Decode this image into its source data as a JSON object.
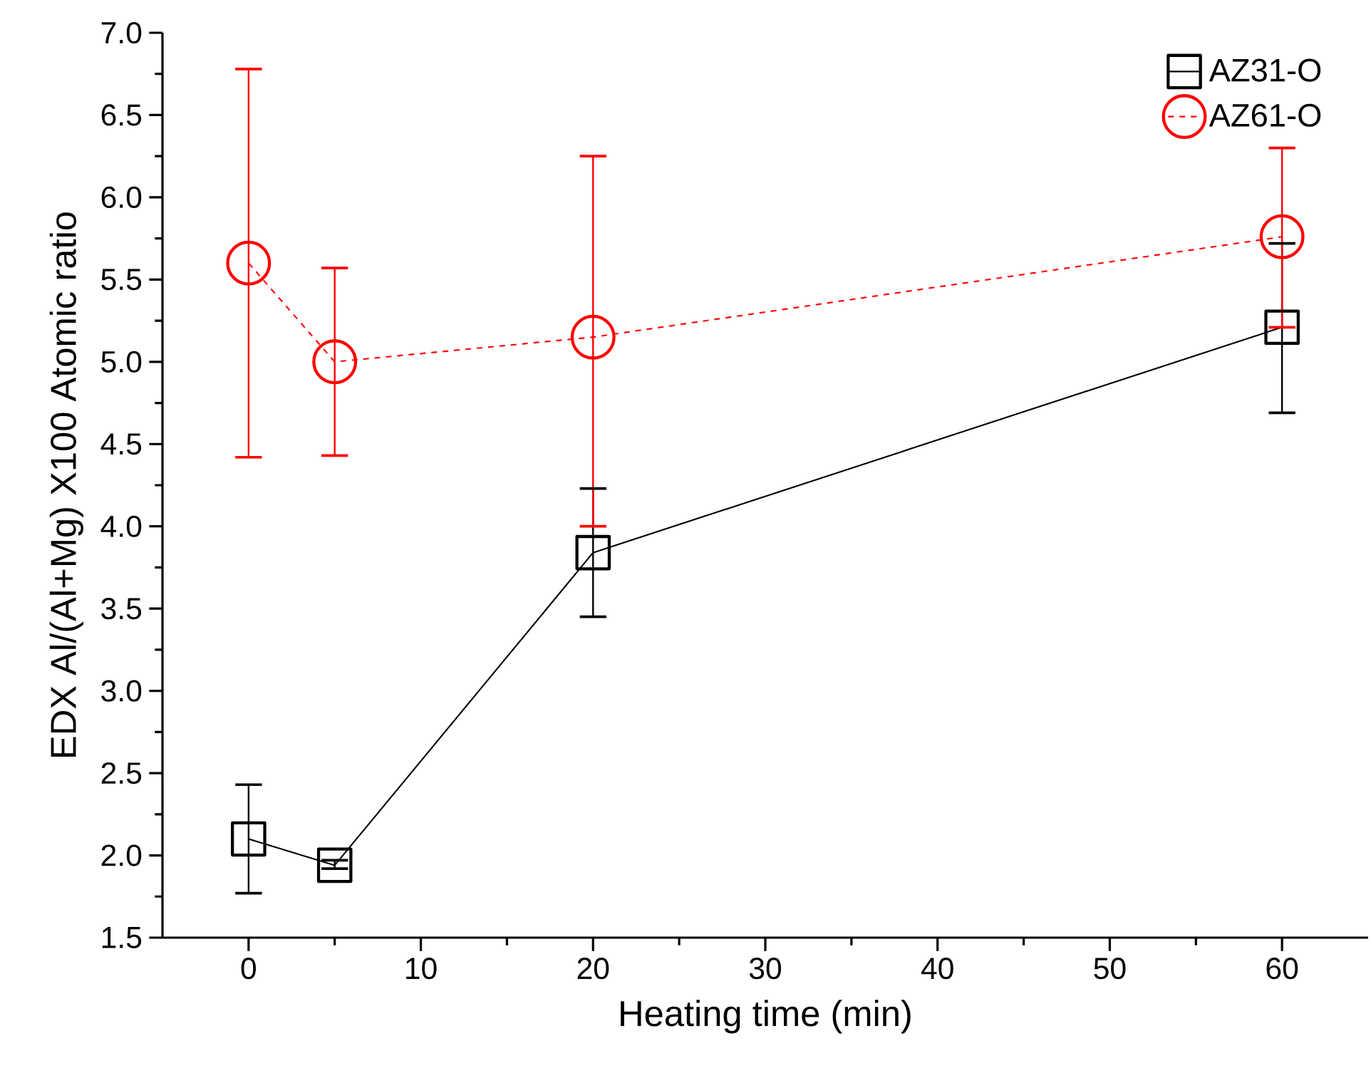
{
  "chart_data": {
    "type": "line",
    "xlabel": "Heating time (min)",
    "ylabel": "EDX Al/(Al+Mg) X100 Atomic ratio",
    "x": [
      0,
      5,
      20,
      60
    ],
    "series": [
      {
        "name": "AZ31-O",
        "color": "#000000",
        "marker": "square",
        "line_style": "solid",
        "values": [
          2.1,
          1.94,
          3.84,
          5.21
        ],
        "errors": [
          [
            1.77,
            2.43
          ],
          [
            1.92,
            1.97
          ],
          [
            3.45,
            4.23
          ],
          [
            4.69,
            5.72
          ]
        ]
      },
      {
        "name": "AZ61-O",
        "color": "#ff0000",
        "marker": "circle",
        "line_style": "dashed",
        "values": [
          5.6,
          5.0,
          5.15,
          5.76
        ],
        "errors": [
          [
            4.42,
            6.78
          ],
          [
            4.43,
            5.57
          ],
          [
            4.0,
            6.25
          ],
          [
            5.21,
            6.3
          ]
        ]
      }
    ],
    "xlim": [
      -5,
      65
    ],
    "xticks": [
      0,
      10,
      20,
      30,
      40,
      50,
      60
    ],
    "ylim": [
      1.5,
      7.0
    ],
    "yticks": [
      1.5,
      {
        "value": 2,
        "label": "2.0"
      },
      2.5,
      {
        "value": 3,
        "label": "3.0"
      },
      3.5,
      {
        "value": 4,
        "label": "4.0"
      },
      4.5,
      {
        "value": 5,
        "label": "5.0"
      },
      5.5,
      {
        "value": 6,
        "label": "6.0"
      },
      6.5,
      {
        "value": 7,
        "label": "7.0"
      }
    ],
    "grid": false,
    "legend": "top right"
  }
}
